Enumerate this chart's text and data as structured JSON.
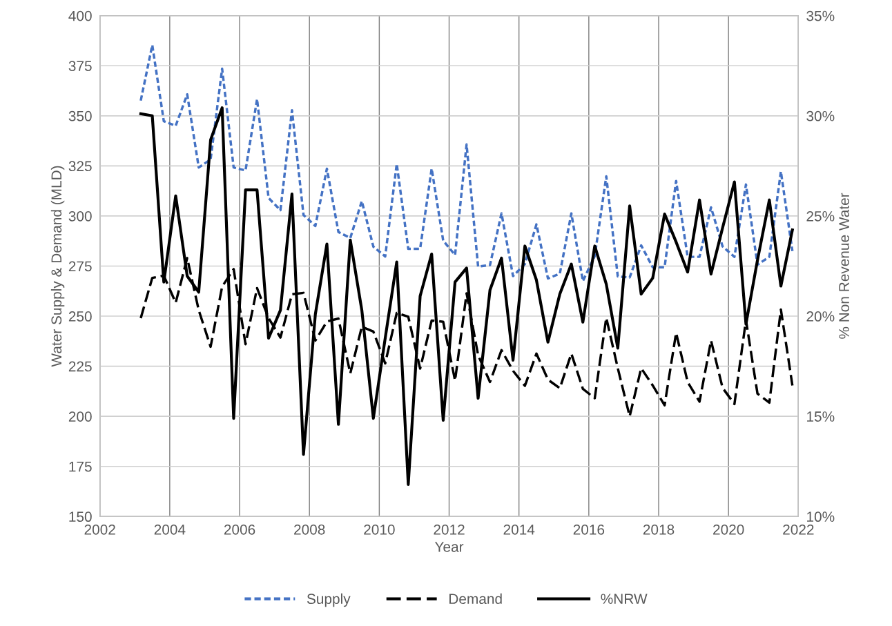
{
  "chart_data": {
    "type": "line",
    "xlabel": "Year",
    "ylabel": "Water Supply & Demand (MLD)",
    "y2label": "% Non Revenue Water",
    "x": [
      2003.17,
      2003.5,
      2003.83,
      2004.17,
      2004.5,
      2004.83,
      2005.17,
      2005.5,
      2005.83,
      2006.17,
      2006.5,
      2006.83,
      2007.17,
      2007.5,
      2007.83,
      2008.17,
      2008.5,
      2008.83,
      2009.17,
      2009.5,
      2009.83,
      2010.17,
      2010.5,
      2010.83,
      2011.17,
      2011.5,
      2011.83,
      2012.17,
      2012.5,
      2012.83,
      2013.17,
      2013.5,
      2013.83,
      2014.17,
      2014.5,
      2014.83,
      2015.17,
      2015.5,
      2015.83,
      2016.17,
      2016.5,
      2016.83,
      2017.17,
      2017.5,
      2017.83,
      2018.17,
      2018.5,
      2018.83,
      2019.17,
      2019.5,
      2019.83,
      2020.17,
      2020.5,
      2020.83,
      2021.17,
      2021.5,
      2021.83
    ],
    "series": [
      {
        "name": "Supply",
        "color": "#4472c4",
        "line_style": "dotted",
        "values": [
          357.6,
          385.3,
          347.3,
          345,
          360.7,
          324.2,
          328.2,
          373.5,
          324.2,
          322.7,
          358.3,
          309,
          302.9,
          352.8,
          300.5,
          295,
          323.6,
          292,
          289,
          307.4,
          284.7,
          279.8,
          326,
          283.6,
          283.6,
          323.6,
          287.7,
          280.5,
          335.7,
          274.7,
          275.5,
          301.3,
          270,
          276,
          295.8,
          268.8,
          271.2,
          301.3,
          267.5,
          280,
          319.8,
          269.8,
          269.3,
          285.3,
          274.4,
          274.4,
          317.5,
          279.6,
          279.6,
          304.3,
          284.8,
          279.6,
          315.7,
          275.7,
          279.6,
          322.2,
          282.5
        ]
      },
      {
        "name": "Demand",
        "color": "#000000",
        "line_style": "dashed",
        "values": [
          249,
          269.1,
          270.2,
          256.7,
          279,
          253,
          234.7,
          264.7,
          273.5,
          236,
          264,
          249,
          239.3,
          260.9,
          261.6,
          237.8,
          247.3,
          248.8,
          221.4,
          244.7,
          242.3,
          226.4,
          251.6,
          249.7,
          223.8,
          247.8,
          247.2,
          217.8,
          261.4,
          230.5,
          217.1,
          233,
          222.7,
          215.2,
          231.3,
          218.3,
          214,
          231.3,
          213.7,
          209,
          249.2,
          224,
          200,
          224,
          215.4,
          205.5,
          241.7,
          217.1,
          207.3,
          237.8,
          214.2,
          206.1,
          248.1,
          211.3,
          206.8,
          253.3,
          215.4
        ]
      },
      {
        "name": "%NRW",
        "color": "#000000",
        "line_style": "solid",
        "axis": "y2",
        "values": [
          30.1,
          30.0,
          21.7,
          26.0,
          22.0,
          21.2,
          28.8,
          30.4,
          14.9,
          26.3,
          26.3,
          18.9,
          20.3,
          26.1,
          13.1,
          20.1,
          23.6,
          14.6,
          23.8,
          20.3,
          14.9,
          18.9,
          22.7,
          11.6,
          21.0,
          23.1,
          14.8,
          21.7,
          22.4,
          15.9,
          21.3,
          22.9,
          17.8,
          23.5,
          21.8,
          18.7,
          21.1,
          22.6,
          19.7,
          23.5,
          21.6,
          18.4,
          25.5,
          21.1,
          21.9,
          25.1,
          23.7,
          22.2,
          25.8,
          22.1,
          24.4,
          26.7,
          19.6,
          22.8,
          25.8,
          21.5,
          24.3
        ]
      }
    ],
    "xlim": [
      2002,
      2022
    ],
    "xticks": [
      2002,
      2004,
      2006,
      2008,
      2010,
      2012,
      2014,
      2016,
      2018,
      2020,
      2022
    ],
    "ylim": [
      150,
      400
    ],
    "yticks": [
      150,
      175,
      200,
      225,
      250,
      275,
      300,
      325,
      350,
      375,
      400
    ],
    "y2lim": [
      10,
      35
    ],
    "y2ticks": [
      {
        "value": 10,
        "label": "10%"
      },
      {
        "value": 15,
        "label": "15%"
      },
      {
        "value": 20,
        "label": "20%"
      },
      {
        "value": 25,
        "label": "25%"
      },
      {
        "value": 30,
        "label": "30%"
      },
      {
        "value": 35,
        "label": "35%"
      }
    ],
    "grid": true,
    "legend": "bottom",
    "marker": "none"
  }
}
